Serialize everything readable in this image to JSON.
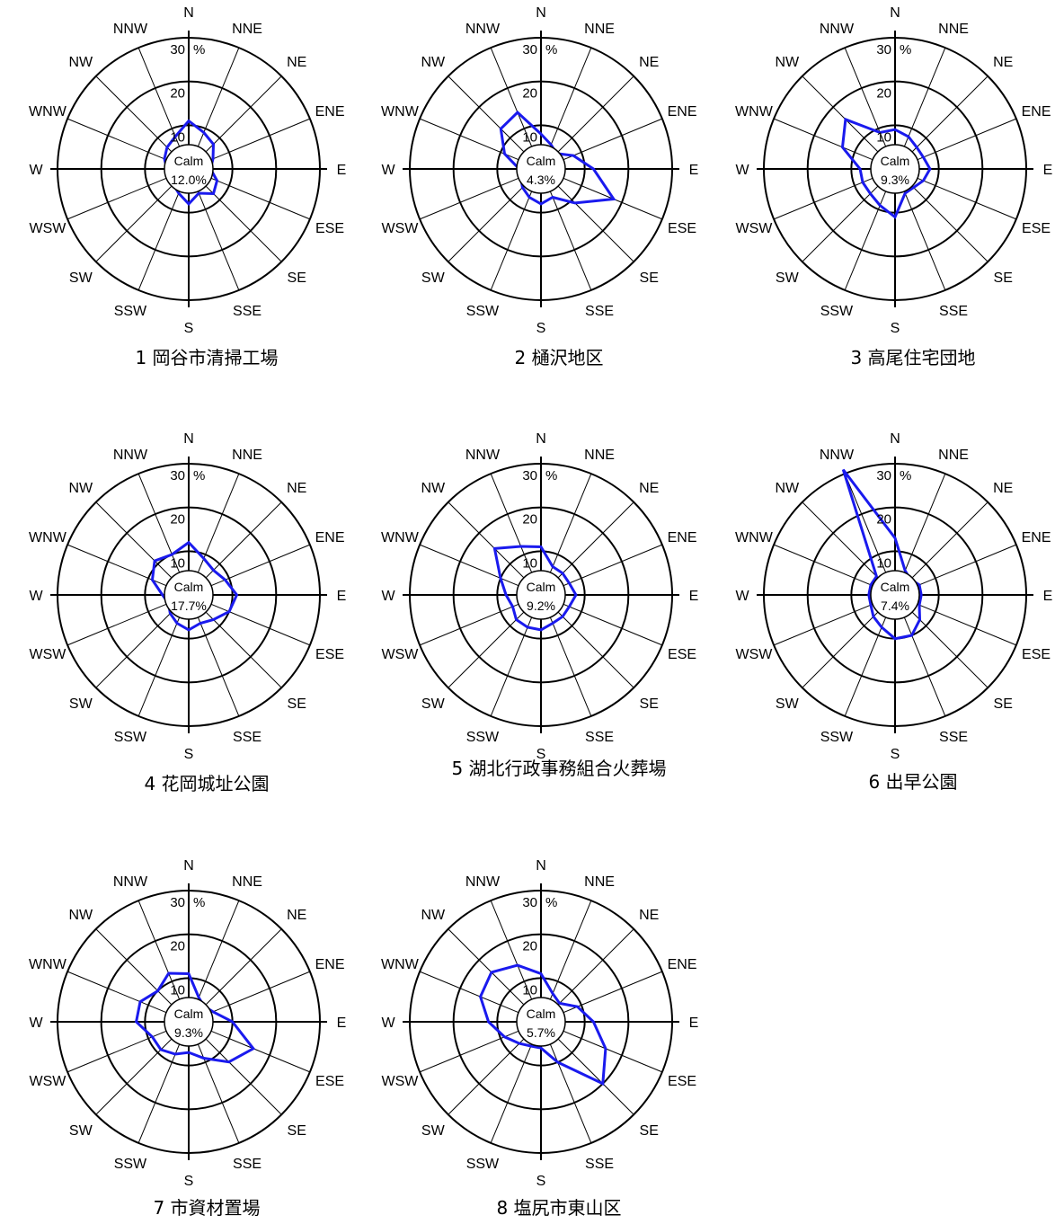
{
  "chart_data": [
    {
      "type": "radar",
      "title": "1 岡谷市清掃工場",
      "directions": [
        "N",
        "NNE",
        "NE",
        "ENE",
        "E",
        "ESE",
        "SE",
        "SSE",
        "S",
        "SSW",
        "SW",
        "WSW",
        "W",
        "WNW",
        "NW",
        "NNW"
      ],
      "rings": [
        "10",
        "20",
        "30"
      ],
      "unit": "%",
      "rmax": 30,
      "calm_label": "Calm",
      "calm_value": "12.0%",
      "series": [
        {
          "values": [
            11,
            9,
            8,
            6,
            5,
            7,
            8,
            6,
            8,
            6,
            5,
            4,
            5,
            6,
            7,
            8
          ]
        }
      ]
    },
    {
      "type": "radar",
      "title": "2 樋沢地区",
      "directions": [
        "N",
        "NNE",
        "NE",
        "ENE",
        "E",
        "ESE",
        "SE",
        "SSE",
        "S",
        "SSW",
        "SW",
        "WSW",
        "W",
        "WNW",
        "NW",
        "NNW"
      ],
      "rings": [
        "10",
        "20",
        "30"
      ],
      "unit": "%",
      "rmax": 30,
      "calm_label": "Calm",
      "calm_value": "4.3%",
      "series": [
        {
          "values": [
            8,
            6,
            5,
            8,
            12,
            18,
            11,
            7,
            8,
            7,
            6,
            5,
            5,
            9,
            13,
            14
          ]
        }
      ]
    },
    {
      "type": "radar",
      "title": "3 高尾住宅団地",
      "directions": [
        "N",
        "NNE",
        "NE",
        "ENE",
        "E",
        "ESE",
        "SE",
        "SSE",
        "S",
        "SSW",
        "SW",
        "WSW",
        "W",
        "WNW",
        "NW",
        "NNW"
      ],
      "rings": [
        "10",
        "20",
        "30"
      ],
      "unit": "%",
      "rmax": 30,
      "calm_label": "Calm",
      "calm_value": "9.3%",
      "series": [
        {
          "values": [
            9,
            8,
            7,
            7,
            8,
            7,
            6,
            6,
            11,
            9,
            8,
            8,
            8,
            13,
            16,
            9
          ]
        }
      ]
    },
    {
      "type": "radar",
      "title": "4 花岡城址公園",
      "directions": [
        "N",
        "NNE",
        "NE",
        "ENE",
        "E",
        "ESE",
        "SE",
        "SSE",
        "S",
        "SSW",
        "SW",
        "WSW",
        "W",
        "WNW",
        "NW",
        "NNW"
      ],
      "rings": [
        "10",
        "20",
        "30"
      ],
      "unit": "%",
      "rmax": 30,
      "calm_label": "Calm",
      "calm_value": "17.7%",
      "series": [
        {
          "values": [
            12,
            9,
            8,
            9,
            11,
            10,
            8,
            7,
            8,
            7,
            6,
            5,
            6,
            9,
            11,
            10
          ]
        }
      ]
    },
    {
      "type": "radar",
      "title": "5 湖北行政事務組合火葬場",
      "directions": [
        "N",
        "NNE",
        "NE",
        "ENE",
        "E",
        "ESE",
        "SE",
        "SSE",
        "S",
        "SSW",
        "SW",
        "WSW",
        "W",
        "WNW",
        "NW",
        "NNW"
      ],
      "rings": [
        "10",
        "20",
        "30"
      ],
      "unit": "%",
      "rmax": 30,
      "calm_label": "Calm",
      "calm_value": "9.2%",
      "series": [
        {
          "values": [
            11,
            7,
            7,
            7,
            8,
            7,
            7,
            7,
            8,
            8,
            8,
            7,
            8,
            10,
            15,
            12
          ]
        }
      ]
    },
    {
      "type": "radar",
      "title": "6 出早公園",
      "directions": [
        "N",
        "NNE",
        "NE",
        "ENE",
        "E",
        "ESE",
        "SE",
        "SSE",
        "S",
        "SSW",
        "SW",
        "WSW",
        "W",
        "WNW",
        "NW",
        "NNW"
      ],
      "rings": [
        "10",
        "20",
        "30"
      ],
      "unit": "%",
      "rmax": 30,
      "calm_label": "Calm",
      "calm_value": "7.4%",
      "series": [
        {
          "values": [
            13,
            6,
            5,
            6,
            6,
            6,
            8,
            10,
            10,
            8,
            7,
            6,
            6,
            6,
            6,
            31
          ]
        }
      ]
    },
    {
      "type": "radar",
      "title": "7 市資材置場",
      "directions": [
        "N",
        "NNE",
        "NE",
        "ENE",
        "E",
        "ESE",
        "SE",
        "SSE",
        "S",
        "SSW",
        "SW",
        "WSW",
        "W",
        "WNW",
        "NW",
        "NNW"
      ],
      "rings": [
        "10",
        "20",
        "30"
      ],
      "unit": "%",
      "rmax": 30,
      "calm_label": "Calm",
      "calm_value": "9.3%",
      "series": [
        {
          "values": [
            11,
            6,
            5,
            6,
            10,
            16,
            13,
            9,
            7,
            8,
            9,
            9,
            12,
            12,
            10,
            12
          ]
        }
      ]
    },
    {
      "type": "radar",
      "title": "8 塩尻市東山区",
      "directions": [
        "N",
        "NNE",
        "NE",
        "ENE",
        "E",
        "ESE",
        "SE",
        "SSE",
        "S",
        "SSW",
        "SW",
        "WSW",
        "W",
        "WNW",
        "NW",
        "NNW"
      ],
      "rings": [
        "10",
        "20",
        "30"
      ],
      "unit": "%",
      "rmax": 30,
      "calm_label": "Calm",
      "calm_value": "5.7%",
      "series": [
        {
          "values": [
            11,
            7,
            6,
            9,
            12,
            16,
            20,
            10,
            6,
            6,
            7,
            9,
            12,
            15,
            16,
            14
          ]
        }
      ]
    }
  ]
}
